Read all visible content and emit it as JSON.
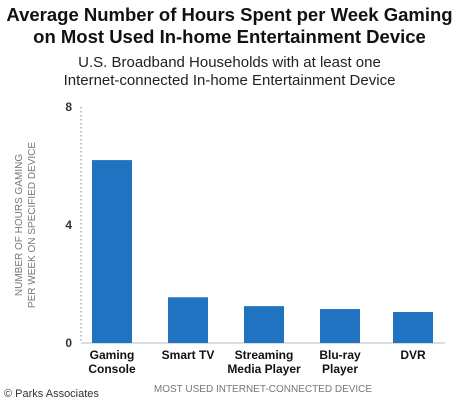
{
  "title_lines": [
    "Average Number of Hours Spent per Week Gaming",
    "on Most Used In-home Entertainment Device"
  ],
  "subtitle_lines": [
    "U.S. Broadband Households with at least one",
    "Internet-connected In-home Entertainment Device"
  ],
  "source": "© Parks Associates",
  "colors": {
    "bar": "#1f73c1",
    "axis": "#999999",
    "grid": "#bbbbbb"
  },
  "chart_data": {
    "type": "bar",
    "title": "Average Number of Hours Spent per Week Gaming on Most Used In-home Entertainment Device",
    "subtitle": "U.S. Broadband Households with at least one Internet-connected In-home Entertainment Device",
    "categories": [
      [
        "Gaming",
        "Console"
      ],
      [
        "Smart TV"
      ],
      [
        "Streaming",
        "Media Player"
      ],
      [
        "Blu-ray",
        "Player"
      ],
      [
        "DVR"
      ]
    ],
    "values": [
      6.2,
      1.55,
      1.25,
      1.15,
      1.05
    ],
    "ylabel_lines": [
      "NUMBER OF HOURS GAMING",
      "PER WEEK ON SPECIFIED DEVICE"
    ],
    "xlabel": "MOST USED INTERNET-CONNECTED DEVICE",
    "ylim": [
      0,
      8
    ],
    "yticks": [
      "0",
      "4",
      "8"
    ],
    "grid": false,
    "legend": "none"
  }
}
